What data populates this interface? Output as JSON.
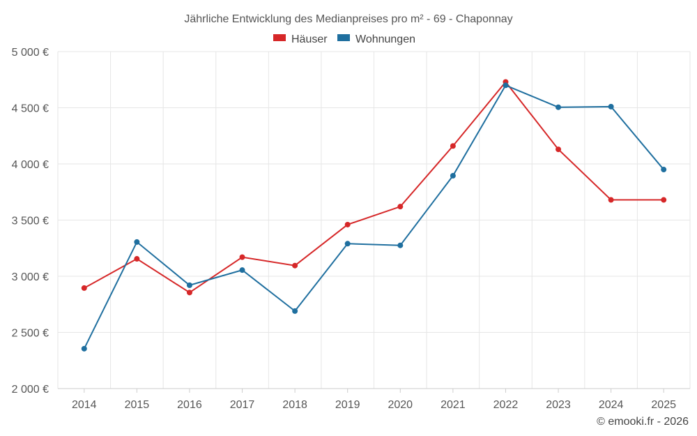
{
  "chart_data": {
    "type": "line",
    "title": "Jährliche Entwicklung des Medianpreises pro m² - 69 - Chaponnay",
    "x": [
      "2014",
      "2015",
      "2016",
      "2017",
      "2018",
      "2019",
      "2020",
      "2021",
      "2022",
      "2023",
      "2024",
      "2025"
    ],
    "ylim": [
      2000,
      5000
    ],
    "yticks": [
      2000,
      2500,
      3000,
      3500,
      4000,
      4500,
      5000
    ],
    "ytick_labels": [
      "2 000 €",
      "2 500 €",
      "3 000 €",
      "3 500 €",
      "4 000 €",
      "4 500 €",
      "5 000 €"
    ],
    "xlabel": "",
    "ylabel": "",
    "legend_position": "top-center",
    "grid": true,
    "series": [
      {
        "name": "Häuser",
        "color": "#d62728",
        "values": [
          2895,
          3155,
          2855,
          3170,
          3095,
          3460,
          3620,
          4160,
          4730,
          4130,
          3680,
          3680
        ]
      },
      {
        "name": "Wohnungen",
        "color": "#1f6f9f",
        "values": [
          2355,
          3305,
          2920,
          3055,
          2690,
          3290,
          3275,
          3895,
          4700,
          4505,
          4510,
          3950
        ]
      }
    ]
  },
  "credit": "© emooki.fr - 2026"
}
